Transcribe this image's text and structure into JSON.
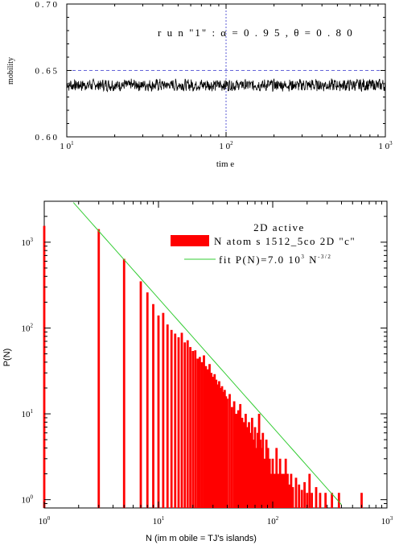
{
  "chart_data": [
    {
      "type": "line",
      "xlabel": "tim e",
      "ylabel": "mobility",
      "xscale": "log",
      "xlim": [
        10,
        1000
      ],
      "ylim": [
        0.6,
        0.7
      ],
      "x_ticks": [
        {
          "value": 10,
          "label": "1 0",
          "exp": "1"
        },
        {
          "value": 100,
          "label": "1 0",
          "exp": "2"
        },
        {
          "value": 1000,
          "label": "1 0",
          "exp": "3"
        }
      ],
      "y_ticks": [
        {
          "value": 0.6,
          "label": "0 . 6 0"
        },
        {
          "value": 0.65,
          "label": "0 . 6 5"
        },
        {
          "value": 0.7,
          "label": "0 . 7 0"
        }
      ],
      "reference_lines": {
        "y": 0.65,
        "x": 100,
        "style": "dashed",
        "color": "#3333cc"
      },
      "annotation": "r u n  \"1\" :    α = 0 . 9 5 ,   θ = 0 . 8 0",
      "series": [
        {
          "color": "#000000",
          "mean": 0.639,
          "noise": 0.004,
          "seed": 7
        }
      ]
    },
    {
      "type": "bar",
      "xlabel": "N  (im m obile = TJ's islands)",
      "ylabel": "P(N)",
      "xscale": "log",
      "yscale": "log",
      "xlim": [
        1,
        1000
      ],
      "ylim": [
        0.8,
        3000
      ],
      "x_ticks": [
        {
          "value": 1,
          "label": "10",
          "exp": "0"
        },
        {
          "value": 10,
          "label": "10",
          "exp": "1"
        },
        {
          "value": 100,
          "label": "10",
          "exp": "2"
        },
        {
          "value": 1000,
          "label": "10",
          "exp": "3"
        }
      ],
      "y_ticks": [
        {
          "value": 1,
          "label": "10",
          "exp": "0"
        },
        {
          "value": 10,
          "label": "10",
          "exp": "1"
        },
        {
          "value": 100,
          "label": "10",
          "exp": "2"
        },
        {
          "value": 1000,
          "label": "10",
          "exp": "3"
        }
      ],
      "legend_title": "2D  active",
      "series": [
        {
          "name": "N atom s 1512_5co 2D  \"c\"",
          "color": "#ff0000",
          "points": [
            [
              1,
              1550
            ],
            [
              3,
              1420
            ],
            [
              5,
              640
            ],
            [
              7,
              350
            ],
            [
              8,
              260
            ],
            [
              9,
              190
            ],
            [
              10,
              140
            ],
            [
              11,
              150
            ],
            [
              12,
              110
            ],
            [
              13,
              95
            ],
            [
              14,
              86
            ],
            [
              15,
              78
            ],
            [
              16,
              88
            ],
            [
              17,
              68
            ],
            [
              18,
              72
            ],
            [
              19,
              60
            ],
            [
              20,
              54
            ],
            [
              21,
              55
            ],
            [
              22,
              44
            ],
            [
              23,
              46
            ],
            [
              24,
              40
            ],
            [
              25,
              48
            ],
            [
              26,
              36
            ],
            [
              27,
              33
            ],
            [
              28,
              38
            ],
            [
              29,
              30
            ],
            [
              30,
              27
            ],
            [
              31,
              29
            ],
            [
              32,
              25
            ],
            [
              33,
              22
            ],
            [
              34,
              24
            ],
            [
              35,
              20
            ],
            [
              36,
              21
            ],
            [
              37,
              18
            ],
            [
              38,
              19
            ],
            [
              39,
              16
            ],
            [
              40,
              15
            ],
            [
              42,
              17
            ],
            [
              44,
              12
            ],
            [
              46,
              14
            ],
            [
              48,
              10
            ],
            [
              50,
              11
            ],
            [
              52,
              13
            ],
            [
              54,
              9
            ],
            [
              56,
              8
            ],
            [
              58,
              10
            ],
            [
              60,
              7
            ],
            [
              62,
              8
            ],
            [
              64,
              6
            ],
            [
              66,
              9
            ],
            [
              68,
              5
            ],
            [
              70,
              7
            ],
            [
              72,
              4
            ],
            [
              74,
              6
            ],
            [
              76,
              10
            ],
            [
              78,
              5
            ],
            [
              80,
              4
            ],
            [
              82,
              6
            ],
            [
              85,
              3
            ],
            [
              88,
              5
            ],
            [
              91,
              4
            ],
            [
              94,
              3
            ],
            [
              97,
              2
            ],
            [
              100,
              3
            ],
            [
              104,
              2
            ],
            [
              108,
              4
            ],
            [
              112,
              2
            ],
            [
              116,
              3
            ],
            [
              120,
              2
            ],
            [
              125,
              2
            ],
            [
              130,
              3
            ],
            [
              135,
              2
            ],
            [
              140,
              1.5
            ],
            [
              145,
              2
            ],
            [
              150,
              1.4
            ],
            [
              160,
              1.8
            ],
            [
              170,
              1.5
            ],
            [
              180,
              1.3
            ],
            [
              190,
              1.6
            ],
            [
              200,
              1.2
            ],
            [
              210,
              2
            ],
            [
              220,
              1.2
            ],
            [
              240,
              1.4
            ],
            [
              260,
              1.2
            ],
            [
              290,
              1.2
            ],
            [
              330,
              1.2
            ],
            [
              380,
              1.2
            ],
            [
              600,
              1.2
            ]
          ]
        },
        {
          "name": "fit P(N)=7.0  10",
          "name_exp": "3",
          "name_mid": " N",
          "name_exp2": "-3/2",
          "color": "#33cc33",
          "type": "line",
          "amplitude": 7000,
          "power": -1.5,
          "x_range": [
            1.8,
            400
          ]
        }
      ]
    }
  ]
}
